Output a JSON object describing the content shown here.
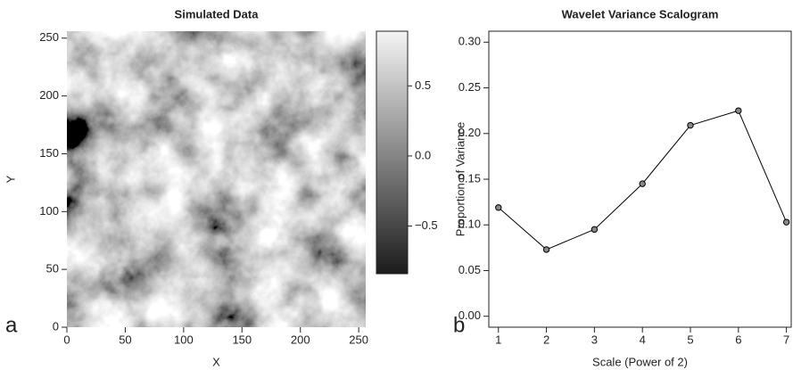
{
  "chart_data": [
    {
      "type": "heatmap",
      "title": "Simulated Data",
      "panel_label": "a",
      "xlabel": "X",
      "ylabel": "Y",
      "xlim": [
        0,
        256
      ],
      "ylim": [
        0,
        256
      ],
      "xticks": [
        0,
        50,
        100,
        150,
        200,
        250
      ],
      "yticks": [
        0,
        50,
        100,
        150,
        200,
        250
      ],
      "colormap": [
        "#1c1c1c",
        "#f4f4f4"
      ],
      "colorbar": {
        "lim": [
          -0.84,
          0.89
        ],
        "ticks": [
          {
            "value": -0.5,
            "label": "−0.5"
          },
          {
            "value": 0,
            "label": "0.0"
          },
          0.5
        ]
      }
    },
    {
      "type": "line",
      "title": "Wavelet Variance Scalogram",
      "panel_label": "b",
      "xlabel": "Scale (Power of 2)",
      "ylabel": "Proportion of Variance",
      "x": [
        1,
        2,
        3,
        4,
        5,
        6,
        7
      ],
      "values": [
        0.119,
        0.073,
        0.095,
        0.145,
        0.209,
        0.225,
        0.103
      ],
      "color": "#000000",
      "marker_color": "#888888",
      "xlim": [
        0.8,
        7.1
      ],
      "ylim": [
        -0.012,
        0.312
      ],
      "xticks": [
        1,
        2,
        3,
        4,
        5,
        6,
        7
      ],
      "yticks": [
        {
          "value": 0,
          "label": "0.00"
        },
        {
          "value": 0.05,
          "label": "0.05"
        },
        {
          "value": 0.1,
          "label": "0.10"
        },
        {
          "value": 0.15,
          "label": "0.15"
        },
        {
          "value": 0.2,
          "label": "0.20"
        },
        {
          "value": 0.25,
          "label": "0.25"
        },
        {
          "value": 0.3,
          "label": "0.30"
        }
      ]
    }
  ]
}
